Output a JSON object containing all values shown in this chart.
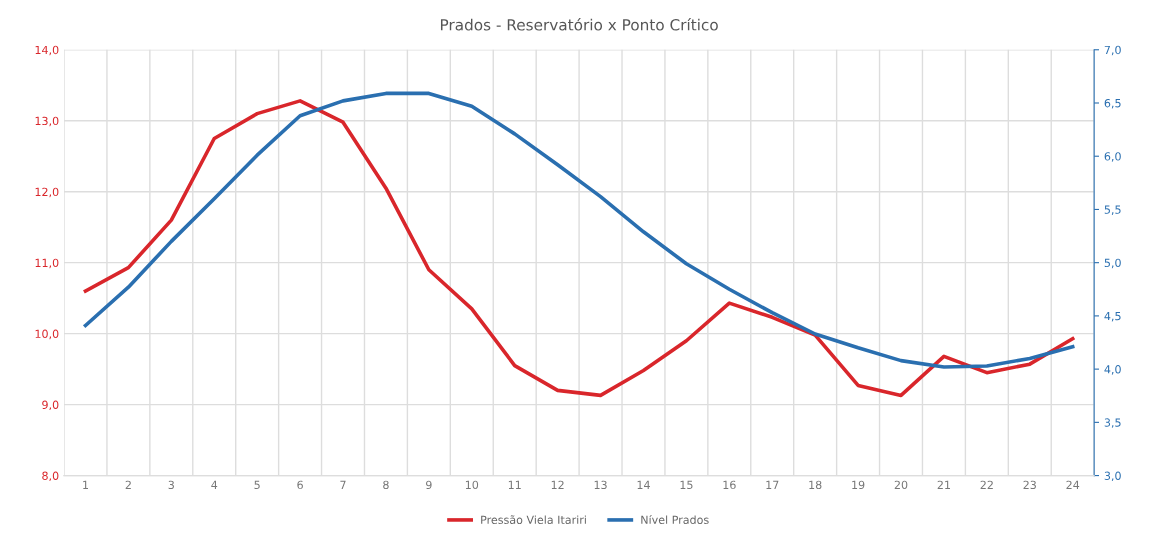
{
  "chart_data": {
    "type": "line",
    "title": "Prados - Reservatório x Ponto Crítico",
    "categories": [
      "1",
      "2",
      "3",
      "4",
      "5",
      "6",
      "7",
      "8",
      "9",
      "10",
      "11",
      "12",
      "13",
      "14",
      "15",
      "16",
      "17",
      "18",
      "19",
      "20",
      "21",
      "22",
      "23",
      "24"
    ],
    "series": [
      {
        "name": "Pressão Viela Itariri",
        "color": "#d9262b",
        "values": [
          10.6,
          10.93,
          11.6,
          12.75,
          13.1,
          13.28,
          12.98,
          12.05,
          10.9,
          10.35,
          9.55,
          9.2,
          9.13,
          9.48,
          9.9,
          10.43,
          10.23,
          9.98,
          9.27,
          9.13,
          9.68,
          9.45,
          9.57,
          9.93
        ]
      },
      {
        "name": "Nível Prados",
        "color": "#2a6fb0",
        "axis": "y2",
        "values": [
          4.41,
          4.77,
          5.2,
          5.6,
          6.01,
          6.38,
          6.52,
          6.59,
          6.59,
          6.47,
          6.21,
          5.92,
          5.62,
          5.29,
          4.99,
          4.75,
          4.53,
          4.33,
          4.2,
          4.08,
          4.02,
          4.03,
          4.1,
          4.21
        ]
      }
    ],
    "ylim": [
      8,
      14
    ],
    "yticks": [
      {
        "value": 8,
        "label": "8,0"
      },
      {
        "value": 9,
        "label": "9,0"
      },
      {
        "value": 10,
        "label": "10,0"
      },
      {
        "value": 11,
        "label": "11,0"
      },
      {
        "value": 12,
        "label": "12,0"
      },
      {
        "value": 13,
        "label": "13,0"
      },
      {
        "value": 14,
        "label": "14,0"
      }
    ],
    "y2lim": [
      3,
      7
    ],
    "y2ticks": [
      {
        "value": 3,
        "label": "3,0"
      },
      {
        "value": 3.5,
        "label": "3,5"
      },
      {
        "value": 4,
        "label": "4,0"
      },
      {
        "value": 4.5,
        "label": "4,5"
      },
      {
        "value": 5,
        "label": "5,0"
      },
      {
        "value": 5.5,
        "label": "5,5"
      },
      {
        "value": 6,
        "label": "6,0"
      },
      {
        "value": 6.5,
        "label": "6,5"
      },
      {
        "value": 7,
        "label": "7,0"
      }
    ],
    "grid": true,
    "legend": "bottom",
    "marker": "none",
    "line_style": "solid"
  }
}
